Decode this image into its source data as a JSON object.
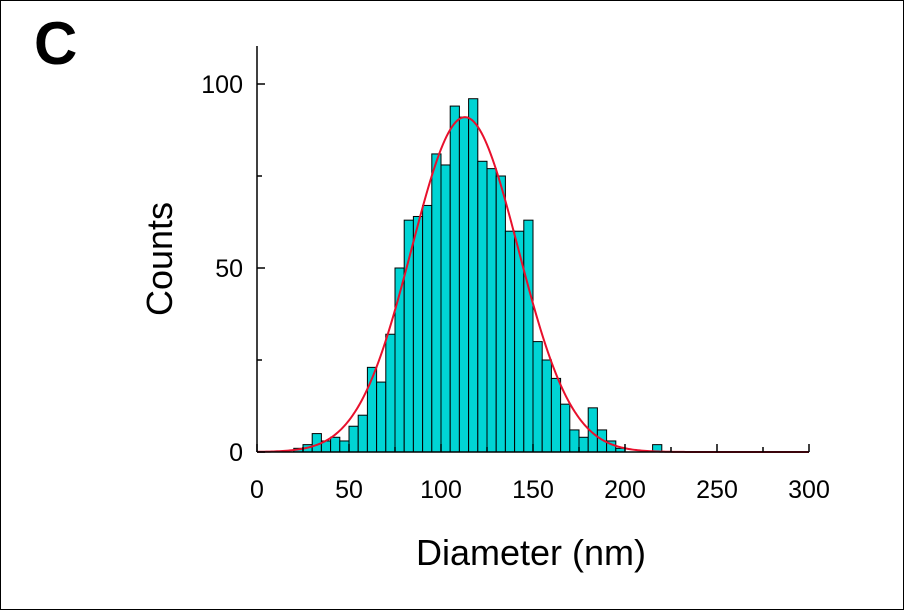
{
  "panel": {
    "label": "C"
  },
  "chart_data": {
    "type": "bar",
    "title": "",
    "xlabel": "Diameter (nm)",
    "ylabel": "Counts",
    "xlim": [
      0,
      300
    ],
    "ylim": [
      0,
      110
    ],
    "bin_width": 5,
    "x_ticks": [
      0,
      50,
      100,
      150,
      200,
      250,
      300
    ],
    "x_tick_labels": [
      "0",
      "50",
      "100",
      "150",
      "200",
      "250",
      "300"
    ],
    "y_ticks": [
      0,
      50,
      100
    ],
    "y_tick_labels": [
      "0",
      "50",
      "100"
    ],
    "grid": false,
    "colors": {
      "bars": "#00d4d4",
      "bar_edge": "#000000",
      "fit": "#e8102c"
    },
    "series": [
      {
        "name": "Counts",
        "type": "histogram",
        "bin_starts": [
          20,
          25,
          30,
          35,
          40,
          45,
          50,
          55,
          60,
          65,
          70,
          75,
          80,
          85,
          90,
          95,
          100,
          105,
          110,
          115,
          120,
          125,
          130,
          135,
          140,
          145,
          150,
          155,
          160,
          165,
          170,
          175,
          180,
          185,
          190,
          195,
          200,
          205,
          210,
          215
        ],
        "values": [
          1,
          2,
          5,
          3,
          4,
          3,
          7,
          10,
          23,
          19,
          32,
          50,
          63,
          64,
          67,
          81,
          78,
          94,
          91,
          96,
          79,
          77,
          75,
          60,
          60,
          63,
          30,
          25,
          20,
          13,
          6,
          4,
          12,
          6,
          3,
          1,
          0,
          0,
          0,
          2
        ]
      },
      {
        "name": "Gaussian fit",
        "type": "line",
        "amplitude": 91,
        "center": 113,
        "sigma": 29,
        "x_range": [
          0,
          300
        ]
      }
    ]
  }
}
